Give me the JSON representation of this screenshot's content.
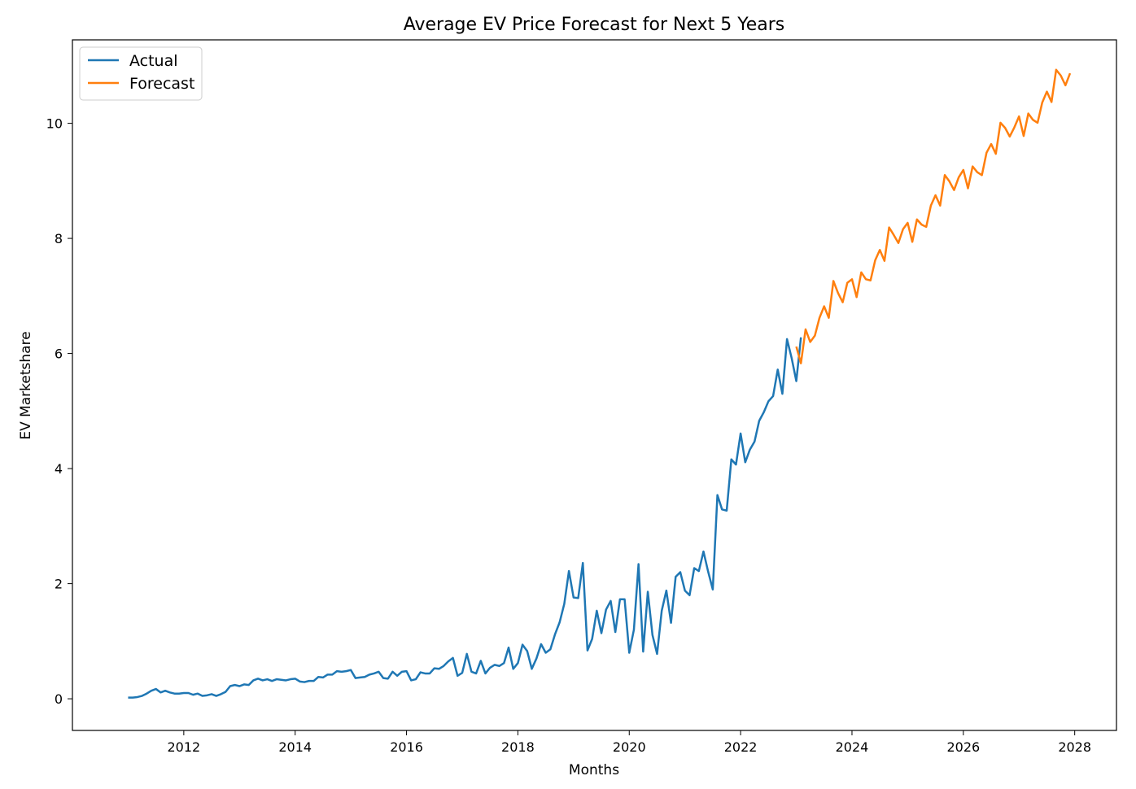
{
  "chart_data": {
    "type": "line",
    "title": "Average EV Price Forecast for Next 5 Years",
    "xlabel": "Months",
    "ylabel": "EV Marketshare",
    "xlim": [
      2010.0,
      2028.75
    ],
    "ylim": [
      -0.55,
      11.45
    ],
    "xticks": [
      2012,
      2014,
      2016,
      2018,
      2020,
      2022,
      2024,
      2026,
      2028
    ],
    "yticks": [
      0,
      2,
      4,
      6,
      8,
      10
    ],
    "grid": false,
    "legend_position": "top-left",
    "series": [
      {
        "name": "Actual",
        "color": "#1f77b4",
        "x_start_year": 2011,
        "x_step": "1 month",
        "values": [
          0.02,
          0.02,
          0.03,
          0.05,
          0.09,
          0.14,
          0.17,
          0.11,
          0.14,
          0.11,
          0.09,
          0.09,
          0.1,
          0.1,
          0.07,
          0.09,
          0.05,
          0.06,
          0.08,
          0.05,
          0.08,
          0.12,
          0.22,
          0.24,
          0.22,
          0.25,
          0.24,
          0.32,
          0.35,
          0.32,
          0.34,
          0.31,
          0.34,
          0.33,
          0.32,
          0.34,
          0.35,
          0.3,
          0.29,
          0.31,
          0.31,
          0.38,
          0.37,
          0.42,
          0.42,
          0.48,
          0.47,
          0.48,
          0.5,
          0.36,
          0.37,
          0.38,
          0.42,
          0.44,
          0.47,
          0.36,
          0.35,
          0.47,
          0.4,
          0.47,
          0.48,
          0.32,
          0.34,
          0.46,
          0.44,
          0.44,
          0.53,
          0.52,
          0.57,
          0.65,
          0.71,
          0.4,
          0.45,
          0.78,
          0.47,
          0.44,
          0.66,
          0.44,
          0.54,
          0.59,
          0.57,
          0.62,
          0.89,
          0.52,
          0.62,
          0.94,
          0.83,
          0.52,
          0.7,
          0.95,
          0.8,
          0.86,
          1.12,
          1.33,
          1.65,
          2.22,
          1.76,
          1.75,
          2.36,
          0.84,
          1.04,
          1.53,
          1.14,
          1.55,
          1.7,
          1.16,
          1.73,
          1.73,
          0.8,
          1.2,
          2.34,
          0.82,
          1.86,
          1.11,
          0.78,
          1.53,
          1.88,
          1.32,
          2.12,
          2.2,
          1.88,
          1.8,
          2.27,
          2.22,
          2.56,
          2.21,
          1.9,
          3.54,
          3.29,
          3.27,
          4.16,
          4.07,
          4.61,
          4.11,
          4.33,
          4.47,
          4.83,
          4.98,
          5.17,
          5.26,
          5.72,
          5.3,
          6.25,
          5.92,
          5.52,
          6.28
        ]
      },
      {
        "name": "Forecast",
        "color": "#ff7f0e",
        "x_start_year": 2023,
        "x_step": "1 month",
        "values": [
          6.12,
          5.83,
          6.42,
          6.2,
          6.31,
          6.62,
          6.82,
          6.62,
          7.26,
          7.05,
          6.89,
          7.23,
          7.29,
          6.98,
          7.41,
          7.29,
          7.27,
          7.62,
          7.8,
          7.61,
          8.19,
          8.06,
          7.92,
          8.16,
          8.27,
          7.94,
          8.33,
          8.24,
          8.2,
          8.57,
          8.75,
          8.57,
          9.1,
          8.99,
          8.84,
          9.06,
          9.19,
          8.87,
          9.25,
          9.15,
          9.1,
          9.49,
          9.64,
          9.47,
          10.01,
          9.92,
          9.77,
          9.93,
          10.12,
          9.78,
          10.17,
          10.06,
          10.01,
          10.36,
          10.55,
          10.37,
          10.93,
          10.83,
          10.66,
          10.87
        ]
      }
    ]
  }
}
